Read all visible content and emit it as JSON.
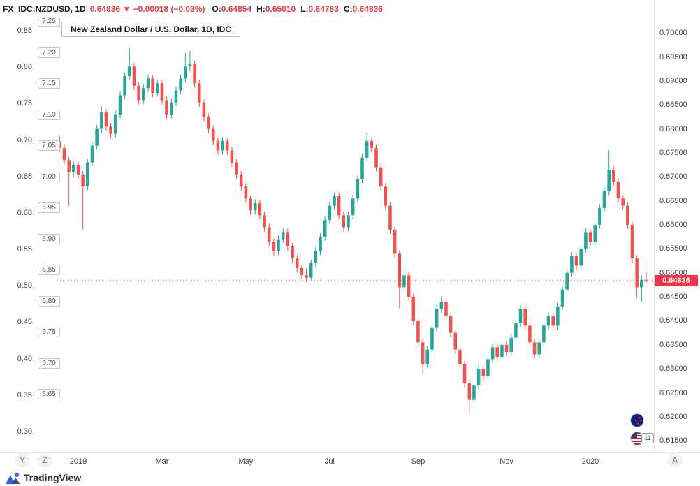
{
  "header": {
    "symbol": "FX_IDC:NZDUSD, 1D",
    "last_price": "0.64836",
    "direction_icon": "▼",
    "change": "−0.00018 (−0.03%)",
    "ohlc": [
      {
        "label": "O:",
        "value": "0.64854"
      },
      {
        "label": "H:",
        "value": "0.65010"
      },
      {
        "label": "L:",
        "value": "0.64783"
      },
      {
        "label": "C:",
        "value": "0.64836"
      }
    ]
  },
  "legend": {
    "title": "New Zealand Dollar / U.S. Dollar, 1D, IDC"
  },
  "axes": {
    "right_labels": [
      "0.70000",
      "0.69500",
      "0.69000",
      "0.68500",
      "0.68000",
      "0.67500",
      "0.67000",
      "0.66500",
      "0.66000",
      "0.65500",
      "0.65000",
      "0.64500",
      "0.64000",
      "0.63500",
      "0.63000",
      "0.62500",
      "0.62000",
      "0.61500"
    ],
    "left_outer_labels": [
      "0.85",
      "0.80",
      "0.75",
      "0.70",
      "0.65",
      "0.60",
      "0.55",
      "0.50",
      "0.45",
      "0.40",
      "0.35",
      "0.30"
    ],
    "left_inner_labels": [
      "7.25",
      "7.20",
      "7.15",
      "7.10",
      "7.05",
      "7.00",
      "6.95",
      "6.90",
      "6.85",
      "6.80",
      "6.75",
      "6.70",
      "6.65"
    ],
    "time_labels": [
      {
        "label": "2019",
        "i": 4
      },
      {
        "label": "Mar",
        "i": 22
      },
      {
        "label": "May",
        "i": 40
      },
      {
        "label": "Jul",
        "i": 58
      },
      {
        "label": "Sep",
        "i": 77
      },
      {
        "label": "Nov",
        "i": 96
      },
      {
        "label": "2020",
        "i": 114
      }
    ]
  },
  "price_line": {
    "value": 0.64836,
    "label": "0.64836",
    "color": "#f23645"
  },
  "buttons": {
    "y": "Y",
    "z": "Z",
    "a": "A"
  },
  "badges": {
    "count": "11"
  },
  "footer": {
    "brand": "TradingView"
  },
  "colors": {
    "up": "#26a69a",
    "down": "#ef5350",
    "accent_red": "#f23645",
    "text": "#131722",
    "muted": "#787b86",
    "border": "#e0e3eb",
    "brand_blue": "#2962ff"
  },
  "chart_data": {
    "type": "candlestick",
    "title": "New Zealand Dollar / U.S. Dollar, 1D, IDC",
    "symbol": "NZDUSD",
    "exchange": "IDC",
    "timeframe": "1D",
    "legend_position": "top-left",
    "grid": false,
    "x_range": [
      "Dec 2018",
      "Feb 2020"
    ],
    "x_tick_labels": [
      "2019",
      "Mar",
      "May",
      "Jul",
      "Sep",
      "Nov",
      "2020"
    ],
    "right_axis_range": [
      0.613,
      0.7025
    ],
    "last_candle_ohlc": {
      "open": 0.64854,
      "high": 0.6501,
      "low": 0.64783,
      "close": 0.64836
    },
    "last_price": 0.64836,
    "change": -0.00018,
    "change_pct": -0.03,
    "candles": [
      [
        0.6775,
        0.6786,
        0.6752,
        0.676
      ],
      [
        0.676,
        0.6768,
        0.6726,
        0.6735
      ],
      [
        0.6735,
        0.6742,
        0.664,
        0.671
      ],
      [
        0.671,
        0.6733,
        0.6701,
        0.6725
      ],
      [
        0.6725,
        0.6731,
        0.6696,
        0.6705
      ],
      [
        0.6705,
        0.6712,
        0.659,
        0.668
      ],
      [
        0.668,
        0.6738,
        0.6672,
        0.673
      ],
      [
        0.673,
        0.6773,
        0.6722,
        0.6765
      ],
      [
        0.6765,
        0.6808,
        0.6757,
        0.68
      ],
      [
        0.68,
        0.6847,
        0.6792,
        0.6835
      ],
      [
        0.6835,
        0.6841,
        0.6796,
        0.6805
      ],
      [
        0.6805,
        0.6813,
        0.6781,
        0.679
      ],
      [
        0.679,
        0.6838,
        0.6782,
        0.683
      ],
      [
        0.683,
        0.6878,
        0.6822,
        0.687
      ],
      [
        0.687,
        0.6918,
        0.6862,
        0.691
      ],
      [
        0.691,
        0.6968,
        0.6902,
        0.693
      ],
      [
        0.693,
        0.6937,
        0.6881,
        0.689
      ],
      [
        0.689,
        0.6897,
        0.6851,
        0.686
      ],
      [
        0.686,
        0.6893,
        0.6852,
        0.6885
      ],
      [
        0.6885,
        0.6913,
        0.6877,
        0.6905
      ],
      [
        0.6905,
        0.6912,
        0.6866,
        0.6875
      ],
      [
        0.6875,
        0.6903,
        0.6867,
        0.6895
      ],
      [
        0.6895,
        0.6902,
        0.6851,
        0.686
      ],
      [
        0.686,
        0.6867,
        0.6821,
        0.683
      ],
      [
        0.683,
        0.6863,
        0.6822,
        0.6855
      ],
      [
        0.6855,
        0.6888,
        0.6847,
        0.688
      ],
      [
        0.688,
        0.6913,
        0.6872,
        0.6905
      ],
      [
        0.6905,
        0.6958,
        0.6897,
        0.693
      ],
      [
        0.693,
        0.6962,
        0.692,
        0.6935
      ],
      [
        0.6935,
        0.6941,
        0.6886,
        0.6895
      ],
      [
        0.6895,
        0.6902,
        0.6846,
        0.6855
      ],
      [
        0.6855,
        0.6862,
        0.6816,
        0.6825
      ],
      [
        0.6825,
        0.6832,
        0.6791,
        0.68
      ],
      [
        0.68,
        0.6807,
        0.6766,
        0.6775
      ],
      [
        0.6775,
        0.6782,
        0.6746,
        0.6755
      ],
      [
        0.6755,
        0.6783,
        0.6747,
        0.6775
      ],
      [
        0.6775,
        0.6781,
        0.6746,
        0.6755
      ],
      [
        0.6755,
        0.6762,
        0.6721,
        0.673
      ],
      [
        0.673,
        0.6737,
        0.6696,
        0.6705
      ],
      [
        0.6705,
        0.6712,
        0.6671,
        0.668
      ],
      [
        0.668,
        0.6687,
        0.6646,
        0.6655
      ],
      [
        0.6655,
        0.6662,
        0.6621,
        0.663
      ],
      [
        0.663,
        0.6653,
        0.6622,
        0.6645
      ],
      [
        0.6645,
        0.6652,
        0.6611,
        0.662
      ],
      [
        0.662,
        0.6627,
        0.6586,
        0.6595
      ],
      [
        0.6595,
        0.6602,
        0.6556,
        0.6565
      ],
      [
        0.6565,
        0.6572,
        0.6536,
        0.6545
      ],
      [
        0.6545,
        0.6578,
        0.6537,
        0.657
      ],
      [
        0.657,
        0.6593,
        0.6562,
        0.6585
      ],
      [
        0.6585,
        0.6592,
        0.6546,
        0.6555
      ],
      [
        0.6555,
        0.6562,
        0.6521,
        0.653
      ],
      [
        0.653,
        0.6537,
        0.6501,
        0.651
      ],
      [
        0.651,
        0.6517,
        0.6486,
        0.6495
      ],
      [
        0.6495,
        0.6509,
        0.6482,
        0.649
      ],
      [
        0.649,
        0.6528,
        0.6483,
        0.652
      ],
      [
        0.652,
        0.6553,
        0.6512,
        0.6545
      ],
      [
        0.6545,
        0.6583,
        0.6537,
        0.6575
      ],
      [
        0.6575,
        0.6618,
        0.6567,
        0.661
      ],
      [
        0.661,
        0.6648,
        0.6602,
        0.664
      ],
      [
        0.664,
        0.6668,
        0.6632,
        0.666
      ],
      [
        0.666,
        0.6667,
        0.6611,
        0.662
      ],
      [
        0.662,
        0.6627,
        0.6586,
        0.6595
      ],
      [
        0.6595,
        0.6628,
        0.6587,
        0.662
      ],
      [
        0.662,
        0.6663,
        0.6612,
        0.6655
      ],
      [
        0.6655,
        0.6703,
        0.6647,
        0.6695
      ],
      [
        0.6695,
        0.6748,
        0.6687,
        0.674
      ],
      [
        0.674,
        0.6792,
        0.6732,
        0.6775
      ],
      [
        0.6775,
        0.6782,
        0.6751,
        0.676
      ],
      [
        0.676,
        0.6767,
        0.6711,
        0.672
      ],
      [
        0.672,
        0.6727,
        0.6671,
        0.668
      ],
      [
        0.668,
        0.6687,
        0.6631,
        0.664
      ],
      [
        0.664,
        0.6647,
        0.6581,
        0.659
      ],
      [
        0.659,
        0.6597,
        0.6531,
        0.654
      ],
      [
        0.654,
        0.6547,
        0.6425,
        0.647
      ],
      [
        0.647,
        0.6503,
        0.6462,
        0.6495
      ],
      [
        0.6495,
        0.6502,
        0.6441,
        0.645
      ],
      [
        0.645,
        0.6457,
        0.6391,
        0.64
      ],
      [
        0.64,
        0.6407,
        0.6346,
        0.6355
      ],
      [
        0.6355,
        0.6362,
        0.629,
        0.631
      ],
      [
        0.631,
        0.6348,
        0.6302,
        0.634
      ],
      [
        0.634,
        0.6393,
        0.6332,
        0.6385
      ],
      [
        0.6385,
        0.6433,
        0.6377,
        0.6425
      ],
      [
        0.6425,
        0.6452,
        0.6417,
        0.644
      ],
      [
        0.644,
        0.6447,
        0.6401,
        0.641
      ],
      [
        0.641,
        0.6417,
        0.6366,
        0.6375
      ],
      [
        0.6375,
        0.6382,
        0.6331,
        0.634
      ],
      [
        0.634,
        0.6347,
        0.6301,
        0.631
      ],
      [
        0.631,
        0.6317,
        0.6261,
        0.627
      ],
      [
        0.627,
        0.6277,
        0.6204,
        0.6235
      ],
      [
        0.6235,
        0.6273,
        0.6227,
        0.6265
      ],
      [
        0.6265,
        0.6308,
        0.6257,
        0.63
      ],
      [
        0.63,
        0.6307,
        0.6276,
        0.6285
      ],
      [
        0.6285,
        0.6328,
        0.6277,
        0.632
      ],
      [
        0.632,
        0.6353,
        0.6312,
        0.6345
      ],
      [
        0.6345,
        0.6352,
        0.6316,
        0.6325
      ],
      [
        0.6325,
        0.6358,
        0.6317,
        0.635
      ],
      [
        0.635,
        0.6357,
        0.6326,
        0.6335
      ],
      [
        0.6335,
        0.6373,
        0.6327,
        0.6365
      ],
      [
        0.6365,
        0.6403,
        0.6357,
        0.6395
      ],
      [
        0.6395,
        0.6433,
        0.6387,
        0.6425
      ],
      [
        0.6425,
        0.6432,
        0.6381,
        0.639
      ],
      [
        0.639,
        0.6397,
        0.6346,
        0.6355
      ],
      [
        0.6355,
        0.6362,
        0.6321,
        0.633
      ],
      [
        0.633,
        0.6363,
        0.6322,
        0.6355
      ],
      [
        0.6355,
        0.6398,
        0.6347,
        0.639
      ],
      [
        0.639,
        0.6418,
        0.6382,
        0.641
      ],
      [
        0.641,
        0.6417,
        0.6381,
        0.639
      ],
      [
        0.639,
        0.6438,
        0.6382,
        0.643
      ],
      [
        0.643,
        0.6473,
        0.6422,
        0.6465
      ],
      [
        0.6465,
        0.6508,
        0.6457,
        0.65
      ],
      [
        0.65,
        0.6543,
        0.6492,
        0.6535
      ],
      [
        0.6535,
        0.6542,
        0.6506,
        0.6515
      ],
      [
        0.6515,
        0.6558,
        0.6507,
        0.655
      ],
      [
        0.655,
        0.6593,
        0.6542,
        0.6585
      ],
      [
        0.6585,
        0.6592,
        0.6556,
        0.6565
      ],
      [
        0.6565,
        0.6608,
        0.6557,
        0.66
      ],
      [
        0.66,
        0.6643,
        0.6592,
        0.6635
      ],
      [
        0.6635,
        0.6678,
        0.6627,
        0.667
      ],
      [
        0.667,
        0.6756,
        0.6662,
        0.6715
      ],
      [
        0.6715,
        0.6722,
        0.6681,
        0.669
      ],
      [
        0.669,
        0.6697,
        0.6646,
        0.6655
      ],
      [
        0.6655,
        0.6662,
        0.6631,
        0.664
      ],
      [
        0.664,
        0.6647,
        0.6591,
        0.66
      ],
      [
        0.66,
        0.6607,
        0.6521,
        0.653
      ],
      [
        0.653,
        0.6537,
        0.6448,
        0.647
      ],
      [
        0.647,
        0.6495,
        0.644,
        0.64854
      ],
      [
        0.64854,
        0.6501,
        0.64783,
        0.64836
      ]
    ]
  }
}
